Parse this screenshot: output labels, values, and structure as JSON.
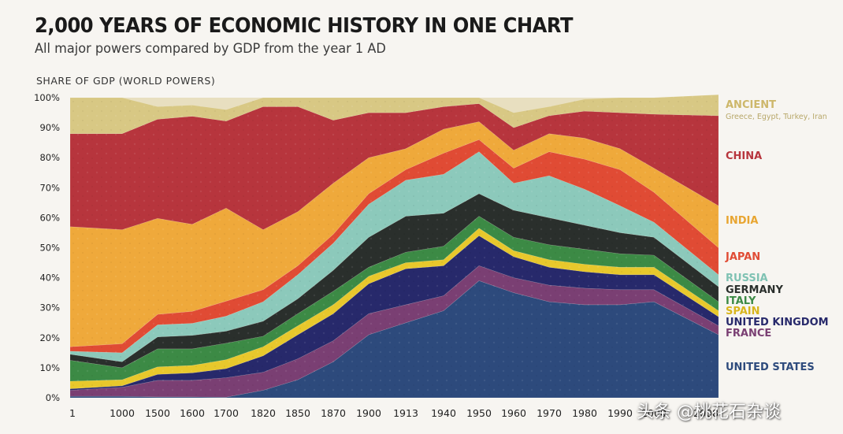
{
  "header": {
    "title": "2,000 YEARS OF ECONOMIC HISTORY IN ONE CHART",
    "subtitle": "All major powers compared by GDP from the year 1 AD",
    "ylabel": "SHARE OF GDP (WORLD POWERS)"
  },
  "watermark": "头条 @桃花石杂谈",
  "chart_data": {
    "type": "area",
    "stacked": true,
    "ylim": [
      0,
      100
    ],
    "yticks": [
      "0%",
      "10%",
      "20%",
      "30%",
      "40%",
      "50%",
      "60%",
      "70%",
      "80%",
      "90%",
      "100%"
    ],
    "categories": [
      "1",
      "1000",
      "1500",
      "1600",
      "1700",
      "1820",
      "1850",
      "1870",
      "1900",
      "1913",
      "1940",
      "1950",
      "1960",
      "1970",
      "1980",
      "1990",
      "2000",
      "2008"
    ],
    "x_tick_labels": [
      "1",
      "1000",
      "1500",
      "1600",
      "1700",
      "1820",
      "1850",
      "1870",
      "1900",
      "1913",
      "1940",
      "1950",
      "1960",
      "1970",
      "1980",
      "1990",
      "2000",
      "2008"
    ],
    "series": [
      {
        "name": "UNITED STATES",
        "color": "#2d4a7c",
        "values": [
          0.5,
          0.5,
          0.3,
          0.3,
          0.2,
          2.5,
          6,
          12,
          21,
          25,
          29,
          39,
          35,
          32,
          31,
          31,
          32,
          21
        ]
      },
      {
        "name": "FRANCE",
        "color": "#7a3f73",
        "values": [
          2,
          3,
          5.5,
          5.5,
          6.5,
          6,
          7,
          7,
          7,
          6,
          5,
          5,
          5,
          5.5,
          5.5,
          5,
          4,
          3
        ]
      },
      {
        "name": "UNITED KINGDOM",
        "color": "#27296b",
        "values": [
          0.5,
          0.5,
          2,
          2.5,
          3,
          5.5,
          8,
          9,
          10,
          12,
          10,
          10,
          7,
          6,
          5.5,
          5,
          5,
          3
        ]
      },
      {
        "name": "SPAIN",
        "color": "#e8c82c",
        "values": [
          2.5,
          2,
          2.5,
          2.5,
          3,
          3,
          3,
          3,
          2.5,
          2,
          2,
          2.5,
          2,
          2.5,
          2.5,
          2.5,
          2.5,
          2
        ]
      },
      {
        "name": "ITALY",
        "color": "#3c8a45",
        "values": [
          7,
          4,
          6,
          5.5,
          5.5,
          3.5,
          4,
          4.5,
          3,
          3.5,
          4.5,
          4,
          4.5,
          5,
          5,
          4.5,
          4,
          3
        ]
      },
      {
        "name": "GERMANY",
        "color": "#2a2f2c",
        "values": [
          2,
          2,
          4,
          4.5,
          4,
          5,
          5,
          7,
          10,
          12,
          11,
          7.5,
          9,
          9,
          8,
          7,
          6,
          5
        ]
      },
      {
        "name": "RUSSIA",
        "color": "#8cc9bb",
        "values": [
          1,
          3,
          4,
          4,
          5,
          6.5,
          8,
          9,
          11,
          12,
          13,
          14,
          9,
          14,
          12,
          9,
          5,
          4
        ]
      },
      {
        "name": "JAPAN",
        "color": "#e04b34",
        "values": [
          1.5,
          3,
          3.5,
          4,
          5,
          4,
          3,
          3,
          3.5,
          3.5,
          7,
          4,
          5,
          8,
          10,
          12,
          10,
          9
        ]
      },
      {
        "name": "INDIA",
        "color": "#efa93b",
        "values": [
          40,
          38,
          32,
          29,
          31,
          20,
          18,
          17,
          12,
          7,
          8,
          6,
          6,
          6,
          7,
          7,
          8,
          14
        ]
      },
      {
        "name": "CHINA",
        "color": "#b7353d",
        "values": [
          31,
          32,
          33,
          36,
          29,
          41,
          35,
          21,
          15,
          12,
          7.5,
          6,
          7.5,
          6,
          9,
          12,
          18,
          30
        ]
      },
      {
        "name": "ANCIENT",
        "color": "#d8c884",
        "values": [
          12,
          12,
          4.2,
          3.7,
          3.8,
          3,
          3,
          7.5,
          5,
          5,
          3,
          2,
          5,
          3,
          4,
          5,
          5.5,
          7
        ]
      }
    ],
    "legend": {
      "placement": "right",
      "entries": [
        {
          "label": "ANCIENT",
          "note": "Greece, Egypt, Turkey, Iran",
          "color": "#cdb76a"
        },
        {
          "label": "CHINA",
          "color": "#b7353d"
        },
        {
          "label": "INDIA",
          "color": "#e8a531"
        },
        {
          "label": "JAPAN",
          "color": "#e04b34"
        },
        {
          "label": "RUSSIA",
          "color": "#7fc2b3"
        },
        {
          "label": "GERMANY",
          "color": "#2a2f2c"
        },
        {
          "label": "ITALY",
          "color": "#3c8a45"
        },
        {
          "label": "SPAIN",
          "color": "#d8b51d"
        },
        {
          "label": "UNITED KINGDOM",
          "color": "#27296b"
        },
        {
          "label": "FRANCE",
          "color": "#7a3f73"
        },
        {
          "label": "UNITED STATES",
          "color": "#2d4a7c"
        }
      ]
    }
  }
}
